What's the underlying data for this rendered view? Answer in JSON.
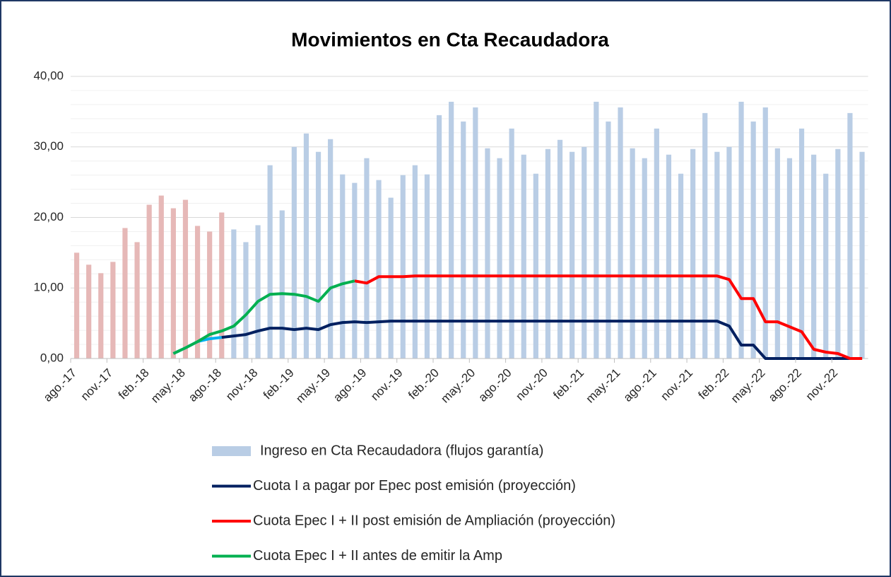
{
  "chart_data": {
    "type": "bar_line",
    "title": "Movimientos en Cta Recaudadora",
    "categories": [
      "ago.-17",
      null,
      null,
      "nov.-17",
      null,
      null,
      "feb.-18",
      null,
      null,
      "may.-18",
      null,
      null,
      "ago.-18",
      null,
      null,
      "nov.-18",
      null,
      null,
      "feb.-19",
      null,
      null,
      "may.-19",
      null,
      null,
      "ago.-19",
      null,
      null,
      "nov.-19",
      null,
      null,
      "feb.-20",
      null,
      null,
      "may.-20",
      null,
      null,
      "ago.-20",
      null,
      null,
      "nov.-20",
      null,
      null,
      "feb.-21",
      null,
      null,
      "may.-21",
      null,
      null,
      "ago.-21",
      null,
      null,
      "nov.-21",
      null,
      null,
      "feb.-22",
      null,
      null,
      "may.-22",
      null,
      null,
      "ago.-22",
      null,
      null,
      "nov.-22",
      null,
      null
    ],
    "ylim": [
      0,
      40
    ],
    "yticks": [
      {
        "value": 0,
        "label": "0,00"
      },
      {
        "value": 10,
        "label": "10,00"
      },
      {
        "value": 20,
        "label": "20,00"
      },
      {
        "value": 30,
        "label": "30,00"
      },
      {
        "value": 40,
        "label": "40,00"
      }
    ],
    "minor_yticks": [
      2,
      4,
      6,
      8,
      12,
      14,
      16,
      18,
      22,
      24,
      26,
      28,
      32,
      34,
      36,
      38
    ],
    "grid": true,
    "series": [
      {
        "name": "Ingreso en Cta Recaudadora (flujos garantía)",
        "kind": "bar",
        "color": "#b9cde5",
        "colors": [
          "#e6b8b7",
          "#e6b8b7",
          "#e6b8b7",
          "#e6b8b7",
          "#e6b8b7",
          "#e6b8b7",
          "#e6b8b7",
          "#e6b8b7",
          "#e6b8b7",
          "#e6b8b7",
          "#e6b8b7",
          "#e6b8b7",
          "#e6b8b7",
          "#b9cde5",
          "#b9cde5",
          "#b9cde5",
          "#b9cde5",
          "#b9cde5",
          "#b9cde5",
          "#b9cde5",
          "#b9cde5",
          "#b9cde5",
          "#b9cde5",
          "#b9cde5",
          "#b9cde5",
          "#b9cde5",
          "#b9cde5",
          "#b9cde5",
          "#b9cde5",
          "#b9cde5",
          "#b9cde5",
          "#b9cde5",
          "#b9cde5",
          "#b9cde5",
          "#b9cde5",
          "#b9cde5",
          "#b9cde5",
          "#b9cde5",
          "#b9cde5",
          "#b9cde5",
          "#b9cde5",
          "#b9cde5",
          "#b9cde5",
          "#b9cde5",
          "#b9cde5",
          "#b9cde5",
          "#b9cde5",
          "#b9cde5",
          "#b9cde5",
          "#b9cde5",
          "#b9cde5",
          "#b9cde5",
          "#b9cde5",
          "#b9cde5",
          "#b9cde5",
          "#b9cde5",
          "#b9cde5",
          "#b9cde5",
          "#b9cde5",
          "#b9cde5",
          "#b9cde5",
          "#b9cde5",
          "#b9cde5",
          "#b9cde5",
          "#b9cde5",
          "#b9cde5"
        ],
        "values": [
          15.0,
          13.3,
          12.1,
          13.7,
          18.5,
          16.5,
          21.8,
          23.1,
          21.3,
          22.5,
          18.8,
          18.0,
          20.7,
          18.3,
          16.5,
          18.9,
          27.4,
          21.0,
          30.0,
          31.9,
          29.3,
          31.1,
          26.1,
          24.9,
          28.4,
          25.3,
          22.8,
          26.0,
          27.4,
          26.1,
          34.5,
          36.4,
          33.6,
          35.6,
          29.8,
          28.4,
          32.6,
          28.9,
          26.2,
          29.7,
          31.0,
          29.3,
          30.0,
          36.4,
          33.6,
          35.6,
          29.8,
          28.4,
          32.6,
          28.9,
          26.2,
          29.7,
          34.8,
          29.3,
          30.0,
          36.4,
          33.6,
          35.6,
          29.8,
          28.4,
          32.6,
          28.9,
          26.2,
          29.7,
          34.8,
          29.3
        ]
      },
      {
        "name": "Cuota I a pagar por Epec post emisión (proyección)",
        "kind": "line",
        "color": "#002060",
        "colors": [
          null,
          null,
          null,
          null,
          null,
          null,
          null,
          null,
          "#00b0f0",
          "#00b0f0",
          "#00b0f0",
          "#00b0f0",
          "#00b0f0",
          "#002060",
          "#002060",
          "#002060",
          "#002060",
          "#002060",
          "#002060",
          "#002060",
          "#002060",
          "#002060",
          "#002060",
          "#002060",
          "#002060",
          "#002060",
          "#002060",
          "#002060",
          "#002060",
          "#002060",
          "#002060",
          "#002060",
          "#002060",
          "#002060",
          "#002060",
          "#002060",
          "#002060",
          "#002060",
          "#002060",
          "#002060",
          "#002060",
          "#002060",
          "#002060",
          "#002060",
          "#002060",
          "#002060",
          "#002060",
          "#002060",
          "#002060",
          "#002060",
          "#002060",
          "#002060",
          "#002060",
          "#002060",
          "#002060",
          "#002060",
          "#002060",
          "#002060",
          "#002060",
          "#002060",
          "#002060",
          "#002060",
          "#002060",
          "#002060",
          "#002060",
          "#002060"
        ],
        "values": [
          null,
          null,
          null,
          null,
          null,
          null,
          null,
          null,
          0.7,
          1.5,
          2.4,
          2.8,
          3.0,
          3.2,
          3.4,
          3.9,
          4.3,
          4.3,
          4.1,
          4.3,
          4.1,
          4.8,
          5.1,
          5.2,
          5.1,
          5.2,
          5.3,
          5.3,
          5.3,
          5.3,
          5.3,
          5.3,
          5.3,
          5.3,
          5.3,
          5.3,
          5.3,
          5.3,
          5.3,
          5.3,
          5.3,
          5.3,
          5.3,
          5.3,
          5.3,
          5.3,
          5.3,
          5.3,
          5.3,
          5.3,
          5.3,
          5.3,
          5.3,
          5.3,
          4.6,
          1.9,
          1.9,
          0.0,
          0.0,
          0.0,
          0.0,
          0.0,
          0.0,
          0.0,
          0.0,
          0.0
        ]
      },
      {
        "name": "Cuota Epec I + II post emisión de Ampliación (proyección)",
        "kind": "line",
        "color": "#ff0000",
        "values": [
          null,
          null,
          null,
          null,
          null,
          null,
          null,
          null,
          null,
          null,
          null,
          null,
          null,
          null,
          null,
          null,
          null,
          null,
          null,
          null,
          null,
          null,
          null,
          11.0,
          10.7,
          11.6,
          11.6,
          11.6,
          11.7,
          11.7,
          11.7,
          11.7,
          11.7,
          11.7,
          11.7,
          11.7,
          11.7,
          11.7,
          11.7,
          11.7,
          11.7,
          11.7,
          11.7,
          11.7,
          11.7,
          11.7,
          11.7,
          11.7,
          11.7,
          11.7,
          11.7,
          11.7,
          11.7,
          11.7,
          11.2,
          8.5,
          8.5,
          5.2,
          5.2,
          4.5,
          3.8,
          1.3,
          0.9,
          0.7,
          0.0,
          0.0
        ]
      },
      {
        "name": "Cuota Epec I + II antes de emitir la Amp",
        "kind": "line",
        "color": "#00b050",
        "values": [
          null,
          null,
          null,
          null,
          null,
          null,
          null,
          null,
          0.7,
          1.5,
          2.4,
          3.4,
          3.9,
          4.6,
          6.2,
          8.1,
          9.1,
          9.2,
          9.1,
          8.8,
          8.1,
          10.0,
          10.6,
          11.0,
          null,
          null,
          null,
          null,
          null,
          null,
          null,
          null,
          null,
          null,
          null,
          null,
          null,
          null,
          null,
          null,
          null,
          null,
          null,
          null,
          null,
          null,
          null,
          null,
          null,
          null,
          null,
          null,
          null,
          null,
          null,
          null,
          null,
          null,
          null,
          null,
          null,
          null,
          null,
          null,
          null,
          null
        ]
      }
    ]
  }
}
